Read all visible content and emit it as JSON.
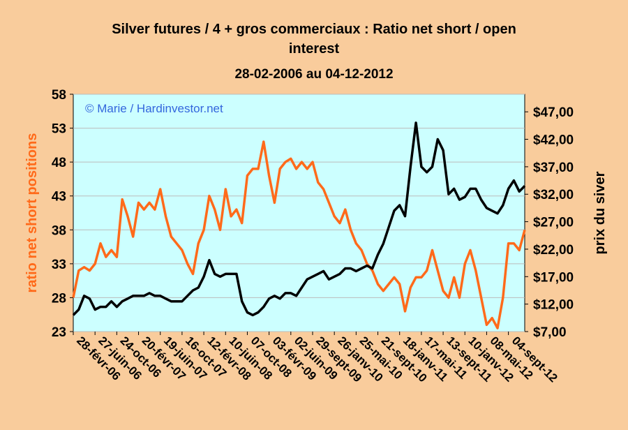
{
  "chart_data": {
    "type": "line",
    "title": "Silver futures  / 4 + gros commerciaux : Ratio net short / open interest",
    "subtitle": "28-02-2006 au 04-12-2012",
    "annotation": "© Marie / Hardinvestor.net",
    "ylabel": "ratio  net short positions",
    "y2label": "prix du siver",
    "categories": [
      "28-févr-06",
      null,
      null,
      null,
      "27-juin-06",
      null,
      null,
      null,
      "24-oct-06",
      null,
      null,
      null,
      "20-févr-07",
      null,
      null,
      null,
      "19-juin-07",
      null,
      null,
      null,
      "16-oct-07",
      null,
      null,
      null,
      "12-févr-08",
      null,
      null,
      null,
      "10-juin-08",
      null,
      null,
      null,
      "07-oct-08",
      null,
      null,
      null,
      "03-févr-09",
      null,
      null,
      null,
      "02-juin-09",
      null,
      null,
      null,
      "29-sept-09",
      null,
      null,
      null,
      "26-janv-10",
      null,
      null,
      null,
      "25-mai-10",
      null,
      null,
      null,
      "21-sept-10",
      null,
      null,
      null,
      "18-janv-11",
      null,
      null,
      null,
      "17-mai-11",
      null,
      null,
      null,
      "13-sept-11",
      null,
      null,
      null,
      "10-janv-12",
      null,
      null,
      null,
      "08-mai-12",
      null,
      null,
      null,
      "04-sept-12",
      null,
      null,
      null
    ],
    "series": [
      {
        "name": "ratio net short",
        "color": "#ff6a1a",
        "axis": "y",
        "values": [
          28,
          32,
          32.5,
          32,
          33,
          36,
          34,
          35,
          34,
          42.5,
          40,
          37,
          42,
          41,
          42,
          41,
          44,
          40,
          37,
          36,
          35,
          33,
          31.5,
          36,
          38,
          43,
          41,
          38,
          44,
          40,
          41,
          39,
          46,
          47,
          47,
          51,
          46,
          42,
          47,
          48,
          48.5,
          47,
          48,
          47,
          48,
          45,
          44,
          42,
          40,
          39,
          41,
          38,
          36,
          35,
          33,
          32,
          30,
          29,
          30,
          31,
          30,
          26,
          29.5,
          31,
          31,
          32,
          35,
          32,
          29,
          28,
          31,
          28,
          33,
          35,
          32,
          28,
          24,
          25,
          23.5,
          28,
          36,
          36,
          35,
          38
        ]
      },
      {
        "name": "prix du silver",
        "color": "#000000",
        "axis": "y2",
        "values": [
          10,
          11,
          13.5,
          13,
          11,
          11.5,
          11.5,
          12.5,
          11.5,
          12.5,
          13,
          13.5,
          13.5,
          13.5,
          14,
          13.5,
          13.5,
          13,
          12.5,
          12.5,
          12.5,
          13.5,
          14.5,
          15,
          17,
          20,
          17.5,
          17,
          17.5,
          17.5,
          17.5,
          12.5,
          10.5,
          10,
          10.5,
          11.5,
          13,
          13.5,
          13,
          14,
          14,
          13.5,
          15,
          16.5,
          17,
          17.5,
          18,
          16.5,
          17,
          17.5,
          18.5,
          18.5,
          18,
          18.5,
          19,
          18.5,
          21,
          23,
          26,
          29,
          30,
          28,
          37,
          45,
          37,
          36,
          37,
          42,
          40,
          32,
          33,
          31,
          31.5,
          33,
          33,
          31,
          29.5,
          29,
          28.5,
          30,
          33,
          34.5,
          32.5,
          33.5
        ]
      }
    ],
    "ylim": [
      23,
      58
    ],
    "yticks": [
      23,
      28,
      33,
      38,
      43,
      48,
      53,
      58
    ],
    "y2lim": [
      7,
      50.2
    ],
    "y2ticks": [
      {
        "value": 7,
        "label": "$7,00"
      },
      {
        "value": 12,
        "label": "$12,00"
      },
      {
        "value": 17,
        "label": "$17,00"
      },
      {
        "value": 22,
        "label": "$22,00"
      },
      {
        "value": 27,
        "label": "$27,00"
      },
      {
        "value": 32,
        "label": "$32,00"
      },
      {
        "value": 37,
        "label": "$37,00"
      },
      {
        "value": 42,
        "label": "$42,00"
      },
      {
        "value": 47,
        "label": "$47,00"
      }
    ],
    "grid": true
  }
}
